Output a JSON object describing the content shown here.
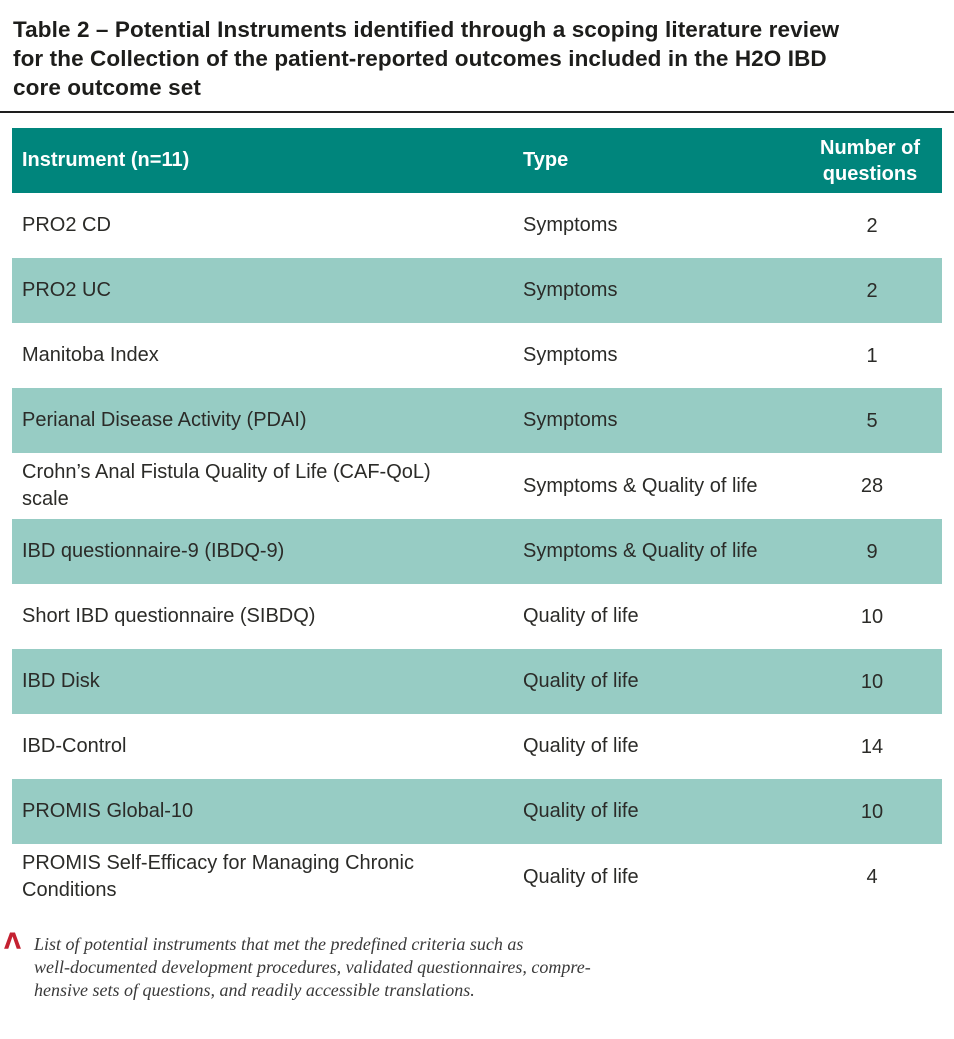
{
  "title": {
    "lines": [
      "Table 2 – Potential Instruments identified through a scoping literature review",
      "for the Collection of the patient-reported outcomes included in the H2O IBD",
      "core outcome set"
    ]
  },
  "table": {
    "columns": {
      "instrument": "Instrument (n=11)",
      "type": "Type",
      "questions": "Number of questions"
    },
    "rows": [
      {
        "instrument": "PRO2 CD",
        "type": "Symptoms",
        "questions": "2"
      },
      {
        "instrument": "PRO2 UC",
        "type": "Symptoms",
        "questions": "2"
      },
      {
        "instrument": "Manitoba Index",
        "type": "Symptoms",
        "questions": "1"
      },
      {
        "instrument": "Perianal Disease Activity (PDAI)",
        "type": "Symptoms",
        "questions": "5"
      },
      {
        "instrument": "Crohn’s Anal Fistula Quality of Life (CAF-QoL) scale",
        "type": "Symptoms & Quality of life",
        "questions": "28"
      },
      {
        "instrument": "IBD questionnaire-9 (IBDQ-9)",
        "type": "Symptoms & Quality of life",
        "questions": "9"
      },
      {
        "instrument": "Short IBD questionnaire (SIBDQ)",
        "type": "Quality of life",
        "questions": "10"
      },
      {
        "instrument": "IBD Disk",
        "type": "Quality of life",
        "questions": "10"
      },
      {
        "instrument": "IBD-Control",
        "type": "Quality of life",
        "questions": "14"
      },
      {
        "instrument": "PROMIS Global-10",
        "type": "Quality of life",
        "questions": "10"
      },
      {
        "instrument": "PROMIS Self-Efficacy for Managing Chronic Conditions",
        "type": "Quality of life",
        "questions": "4"
      }
    ]
  },
  "caption": {
    "marker": "Λ",
    "lines": [
      "List of potential instruments that met the predefined criteria such as",
      "well-documented development procedures, validated questionnaires, compre-",
      "hensive sets of questions, and readily accessible translations."
    ]
  },
  "colors": {
    "header_bg": "#00857C",
    "row_alt_bg": "#97CCC4",
    "header_text": "#FFFFFF",
    "body_text": "#2B2B28",
    "title_text": "#1D1D1B",
    "caption_marker_red": "#C42131",
    "caption_text": "#3A3A3A",
    "rule": "#1E1E1E"
  }
}
